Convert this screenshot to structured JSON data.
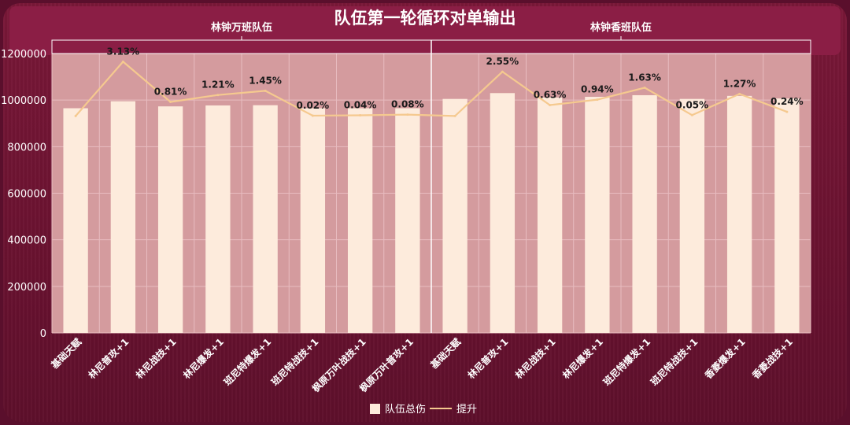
{
  "chart_data": {
    "type": "bar",
    "title": "队伍第一轮循环对单输出",
    "groups": [
      {
        "label": "林钟万班队伍",
        "start": 0,
        "end": 8
      },
      {
        "label": "林钟香班队伍",
        "start": 8,
        "end": 16
      }
    ],
    "categories": [
      "基础天赋",
      "林尼普攻+1",
      "林尼战技+1",
      "林尼爆发+1",
      "班尼特爆发+1",
      "班尼特战技+1",
      "枫原万叶战技+1",
      "枫原万叶普攻+1",
      "基础天赋",
      "林尼普攻+1",
      "林尼战技+1",
      "林尼爆发+1",
      "班尼特爆发+1",
      "班尼特战技+1",
      "香菱爆发+1",
      "香菱战技+1"
    ],
    "series": [
      {
        "name": "队伍总伤",
        "type": "bar",
        "axis": "left",
        "values": [
          965000,
          995000,
          973000,
          977000,
          978000,
          965000,
          965000,
          965000,
          1005000,
          1030000,
          1011000,
          1014000,
          1021000,
          1005000,
          1018000,
          1007000
        ]
      },
      {
        "name": "提升",
        "type": "line",
        "axis": "right",
        "values": [
          0.0,
          3.13,
          0.81,
          1.21,
          1.45,
          0.02,
          0.04,
          0.08,
          0.0,
          2.55,
          0.63,
          0.94,
          1.63,
          0.05,
          1.27,
          0.24
        ],
        "labels": [
          "",
          "3.13%",
          "0.81%",
          "1.21%",
          "1.45%",
          "0.02%",
          "0.04%",
          "0.08%",
          "",
          "2.55%",
          "0.63%",
          "0.94%",
          "1.63%",
          "0.05%",
          "1.27%",
          "0.24%"
        ]
      }
    ],
    "yticks": [
      "0",
      "200000",
      "400000",
      "600000",
      "800000",
      "1000000",
      "1200000"
    ],
    "ylim": [
      0,
      1200000
    ],
    "y2lim": [
      -12.5,
      3.6
    ],
    "legend_position": "bottom",
    "grid": true,
    "colors": {
      "bar": "#fdebdc",
      "line": "#f5c98f",
      "plot_bg": "#d49b9e",
      "grid": "#e8bcc0",
      "band": "#8b1e45"
    }
  }
}
